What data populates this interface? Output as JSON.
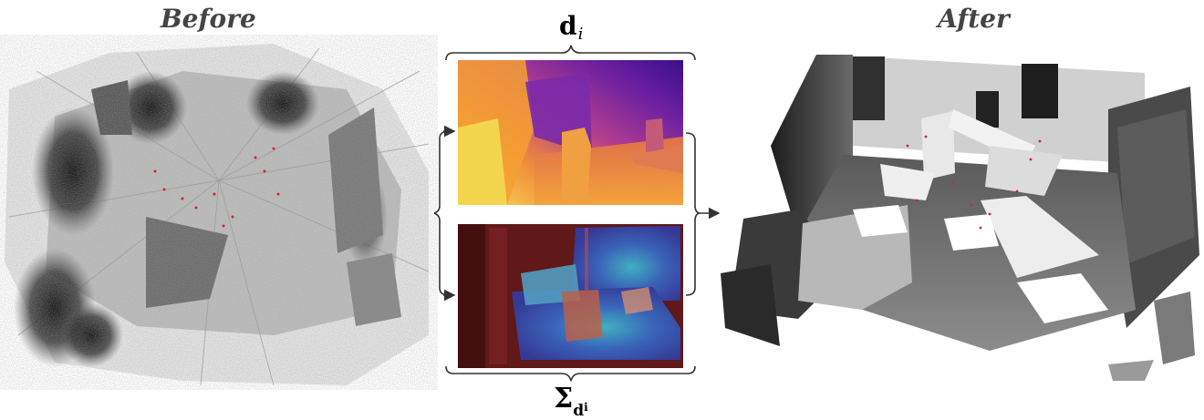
{
  "figure": {
    "before_title": "Before",
    "after_title": "After",
    "depth_label": {
      "main": "d",
      "sub": "i"
    },
    "uncertainty_label": {
      "main": "Σ",
      "sub": "d",
      "subsub": "i"
    }
  },
  "colors": {
    "title_gray": "#444444",
    "arrow": "#333333",
    "bracket": "#333333",
    "depth_dark": "#3a0f86",
    "depth_mid": "#b23e8f",
    "depth_bright": "#f7e35a",
    "uncert_dark": "#5a1a1a",
    "uncert_blue": "#2f6fd0",
    "uncert_cyan": "#36c7d9"
  },
  "icons": {
    "arrow_in_top": "arrow-right-icon",
    "arrow_in_bottom": "arrow-right-icon",
    "arrow_out": "arrow-right-icon"
  }
}
